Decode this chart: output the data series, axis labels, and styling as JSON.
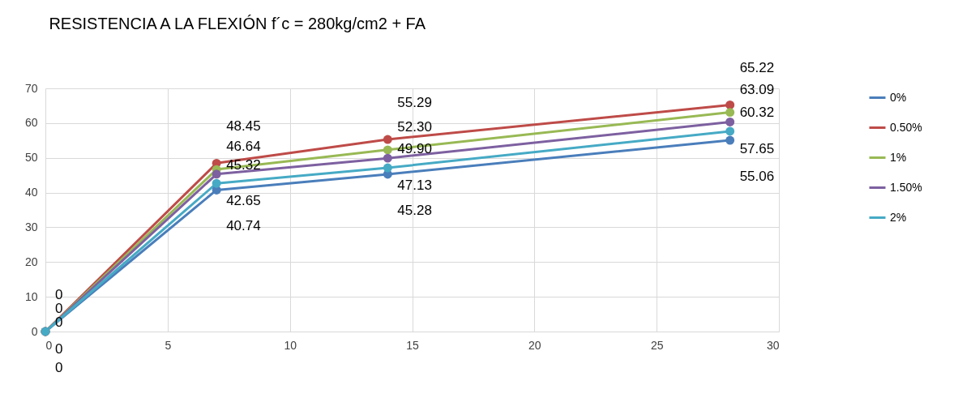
{
  "chart_data": {
    "type": "line",
    "title": "RESISTENCIA A LA FLEXIÓN f´c = 280kg/cm2 + FA",
    "x": [
      0,
      7,
      14,
      28
    ],
    "series": [
      {
        "name": "0%",
        "color": "#4a7ebb",
        "values": [
          0,
          40.74,
          45.28,
          55.06
        ],
        "value_labels": [
          "0",
          "40.74",
          "45.28",
          "55.06"
        ]
      },
      {
        "name": "0.50%",
        "color": "#be4b48",
        "values": [
          0,
          48.45,
          55.29,
          65.22
        ],
        "value_labels": [
          "0",
          "48.45",
          "55.29",
          "65.22"
        ]
      },
      {
        "name": "1%",
        "color": "#98b954",
        "values": [
          0,
          46.64,
          52.3,
          63.09
        ],
        "value_labels": [
          "0",
          "46.64",
          "52.30",
          "63.09"
        ]
      },
      {
        "name": "1.50%",
        "color": "#7d60a0",
        "values": [
          0,
          45.32,
          49.9,
          60.32
        ],
        "value_labels": [
          "0",
          "45.32",
          "49.90",
          "60.32"
        ]
      },
      {
        "name": "2%",
        "color": "#46aac5",
        "values": [
          0,
          42.65,
          47.13,
          57.65
        ],
        "value_labels": [
          "0",
          "42.65",
          "47.13",
          "57.65"
        ]
      }
    ],
    "xlim": [
      0,
      30
    ],
    "xticks": [
      0,
      5,
      10,
      15,
      20,
      25,
      30
    ],
    "ylim": [
      0,
      70
    ],
    "yticks": [
      0,
      10,
      20,
      30,
      40,
      50,
      60,
      70
    ],
    "grid": true,
    "legend": "right",
    "marker": "circle",
    "line_style": "solid"
  }
}
